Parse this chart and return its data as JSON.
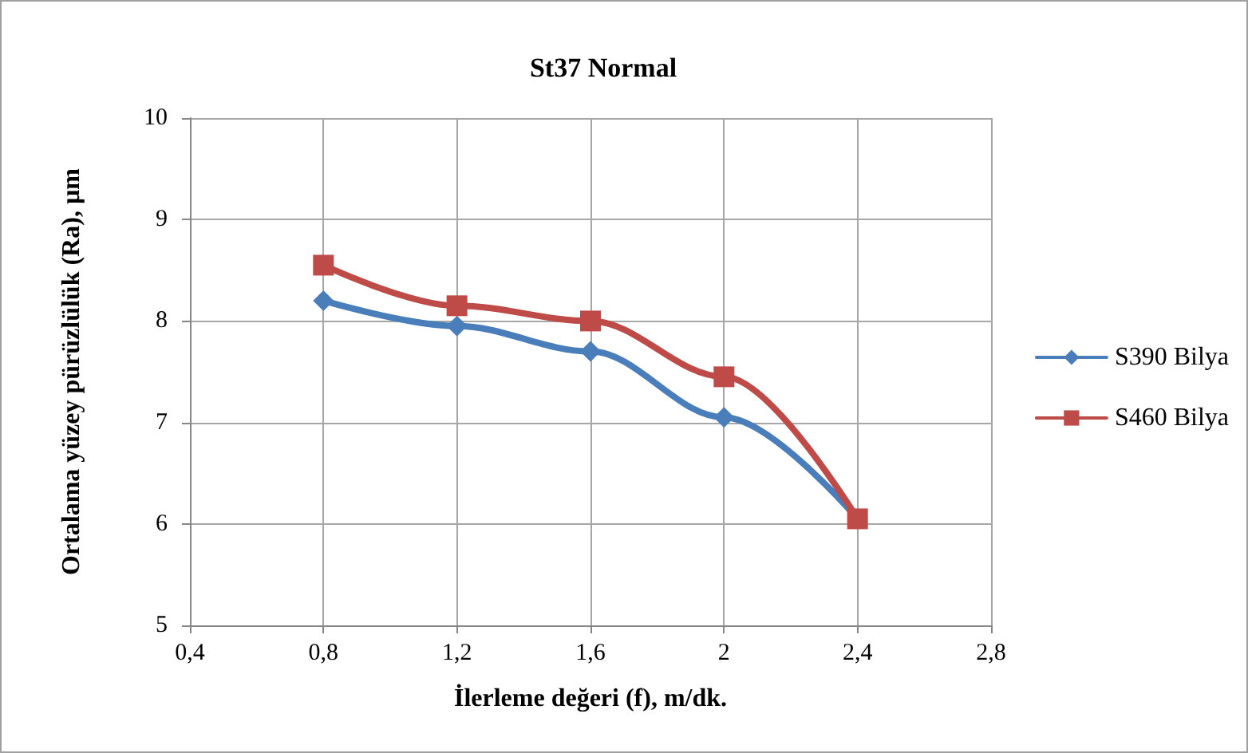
{
  "chart_data": {
    "type": "line",
    "title": "St37 Normal",
    "xlabel": "İlerleme değeri (f), m/dk.",
    "ylabel": "Ortalama yüzey pürüzlülük (Ra), µm",
    "x": [
      0.8,
      1.2,
      1.6,
      2,
      2.4
    ],
    "series": [
      {
        "name": "S390 Bilya",
        "color": "#4a7ebb",
        "marker": "diamond",
        "values": [
          8.2,
          7.95,
          7.7,
          7.05,
          6.05
        ]
      },
      {
        "name": "S460 Bilya",
        "color": "#be4b48",
        "marker": "square",
        "values": [
          8.55,
          8.15,
          8.0,
          7.45,
          6.05
        ]
      }
    ],
    "xlim": [
      0.4,
      2.8
    ],
    "xticks": [
      {
        "value": 0.4,
        "label": "0,4"
      },
      {
        "value": 0.8,
        "label": "0,8"
      },
      {
        "value": 1.2,
        "label": "1,2"
      },
      {
        "value": 1.6,
        "label": "1,6"
      },
      {
        "value": 2,
        "label": "2"
      },
      {
        "value": 2.4,
        "label": "2,4"
      },
      {
        "value": 2.8,
        "label": "2,8"
      }
    ],
    "ylim": [
      5,
      10
    ],
    "yticks": [
      5,
      6,
      7,
      8,
      9,
      10
    ],
    "grid": true,
    "legend": "right",
    "line_style": "solid"
  }
}
